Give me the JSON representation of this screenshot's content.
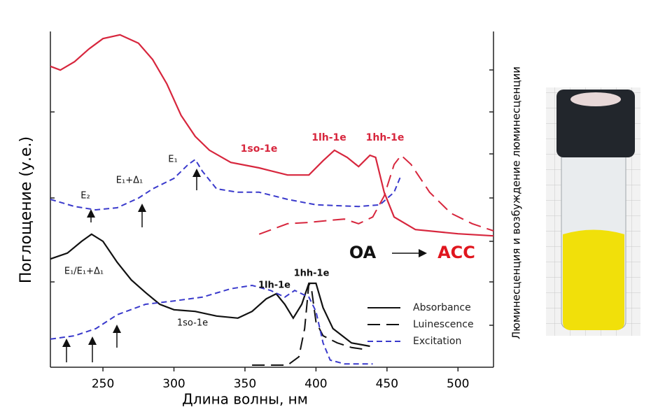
{
  "chart_data": {
    "type": "line",
    "x_label": "Длина волны, нм",
    "y_label": "Поглощение (у.е.)",
    "y2_label": "Люминесценция и возбуждение люминесценции",
    "xlim": [
      213,
      525
    ],
    "xticks": [
      250,
      300,
      350,
      400,
      450,
      500
    ],
    "ylim": [
      0,
      8
    ],
    "series": [
      {
        "color": "#d7263d",
        "dash": "solid",
        "x": [
          213,
          220,
          230,
          240,
          250,
          262,
          275,
          285,
          295,
          305,
          315,
          325,
          340,
          360,
          380,
          395,
          405,
          413,
          422,
          430,
          438,
          442,
          448,
          455,
          470,
          500,
          525
        ],
        "values": [
          7.17,
          7.08,
          7.28,
          7.58,
          7.83,
          7.92,
          7.72,
          7.33,
          6.75,
          6.0,
          5.5,
          5.17,
          4.88,
          4.75,
          4.58,
          4.58,
          4.92,
          5.17,
          5.0,
          4.78,
          5.05,
          5.0,
          4.17,
          3.58,
          3.28,
          3.18,
          3.13
        ]
      },
      {
        "color": "#d7263d",
        "dash": "long",
        "x": [
          360,
          380,
          395,
          410,
          420,
          430,
          440,
          448,
          455,
          460,
          467,
          480,
          495,
          510,
          525
        ],
        "values": [
          3.17,
          3.42,
          3.45,
          3.5,
          3.53,
          3.42,
          3.58,
          4.08,
          4.83,
          5.05,
          4.83,
          4.17,
          3.67,
          3.42,
          3.25
        ]
      },
      {
        "color": "#3a3acc",
        "dash": "short",
        "x": [
          213,
          230,
          245,
          260,
          275,
          285,
          300,
          310,
          315,
          320,
          330,
          345,
          360,
          380,
          400,
          430,
          445,
          455,
          460
        ],
        "values": [
          4.0,
          3.83,
          3.75,
          3.8,
          4.03,
          4.25,
          4.5,
          4.83,
          4.95,
          4.67,
          4.25,
          4.17,
          4.17,
          4.0,
          3.87,
          3.83,
          3.87,
          4.17,
          4.58
        ]
      },
      {
        "color": "#111111",
        "dash": "solid",
        "x": [
          213,
          225,
          235,
          242,
          250,
          260,
          270,
          280,
          290,
          300,
          315,
          330,
          345,
          355,
          365,
          372,
          378,
          384,
          390,
          395,
          400,
          405,
          412,
          425,
          438
        ],
        "values": [
          2.58,
          2.72,
          3.0,
          3.17,
          3.0,
          2.5,
          2.08,
          1.78,
          1.5,
          1.37,
          1.33,
          1.22,
          1.17,
          1.33,
          1.63,
          1.75,
          1.5,
          1.17,
          1.5,
          2.0,
          2.0,
          1.42,
          0.92,
          0.58,
          0.5
        ]
      },
      {
        "color": "#111111",
        "dash": "long",
        "x": [
          355,
          380,
          388,
          392,
          395,
          397,
          400,
          405,
          415,
          425,
          435
        ],
        "values": [
          0.05,
          0.05,
          0.25,
          0.92,
          2.0,
          1.83,
          1.08,
          0.75,
          0.58,
          0.47,
          0.42
        ]
      },
      {
        "color": "#3a3acc",
        "dash": "short",
        "x": [
          213,
          230,
          245,
          260,
          280,
          300,
          320,
          340,
          355,
          368,
          378,
          385,
          395,
          400,
          405,
          410,
          420,
          440
        ],
        "values": [
          0.67,
          0.75,
          0.92,
          1.25,
          1.5,
          1.58,
          1.67,
          1.87,
          1.95,
          1.83,
          1.67,
          1.83,
          1.67,
          1.33,
          0.58,
          0.17,
          0.08,
          0.08
        ]
      }
    ],
    "legend": [
      {
        "label": "Absorbance",
        "color": "#111111",
        "dash": "solid"
      },
      {
        "label": "Luinescence",
        "color": "#111111",
        "dash": "long"
      },
      {
        "label": "Excitation",
        "color": "#3a3acc",
        "dash": "short"
      }
    ],
    "annotations": [
      {
        "text": "E₂",
        "color": "#111111"
      },
      {
        "text": "E₁+Δ₁",
        "color": "#111111"
      },
      {
        "text": "E₁",
        "color": "#111111"
      },
      {
        "text": "1so-1e",
        "color": "#d7263d"
      },
      {
        "text": "1lh-1e",
        "color": "#d7263d"
      },
      {
        "text": "1hh-1e",
        "color": "#d7263d"
      },
      {
        "text": "E₁/E₁+Δ₁",
        "color": "#111111"
      },
      {
        "text": "1so-1e",
        "color": "#111111"
      },
      {
        "text": "1lh-1e",
        "color": "#111111"
      },
      {
        "text": "1hh-1e",
        "color": "#111111"
      },
      {
        "text": "OA",
        "color": "#111111"
      },
      {
        "text": "ACC",
        "color": "#e0161e"
      }
    ]
  }
}
